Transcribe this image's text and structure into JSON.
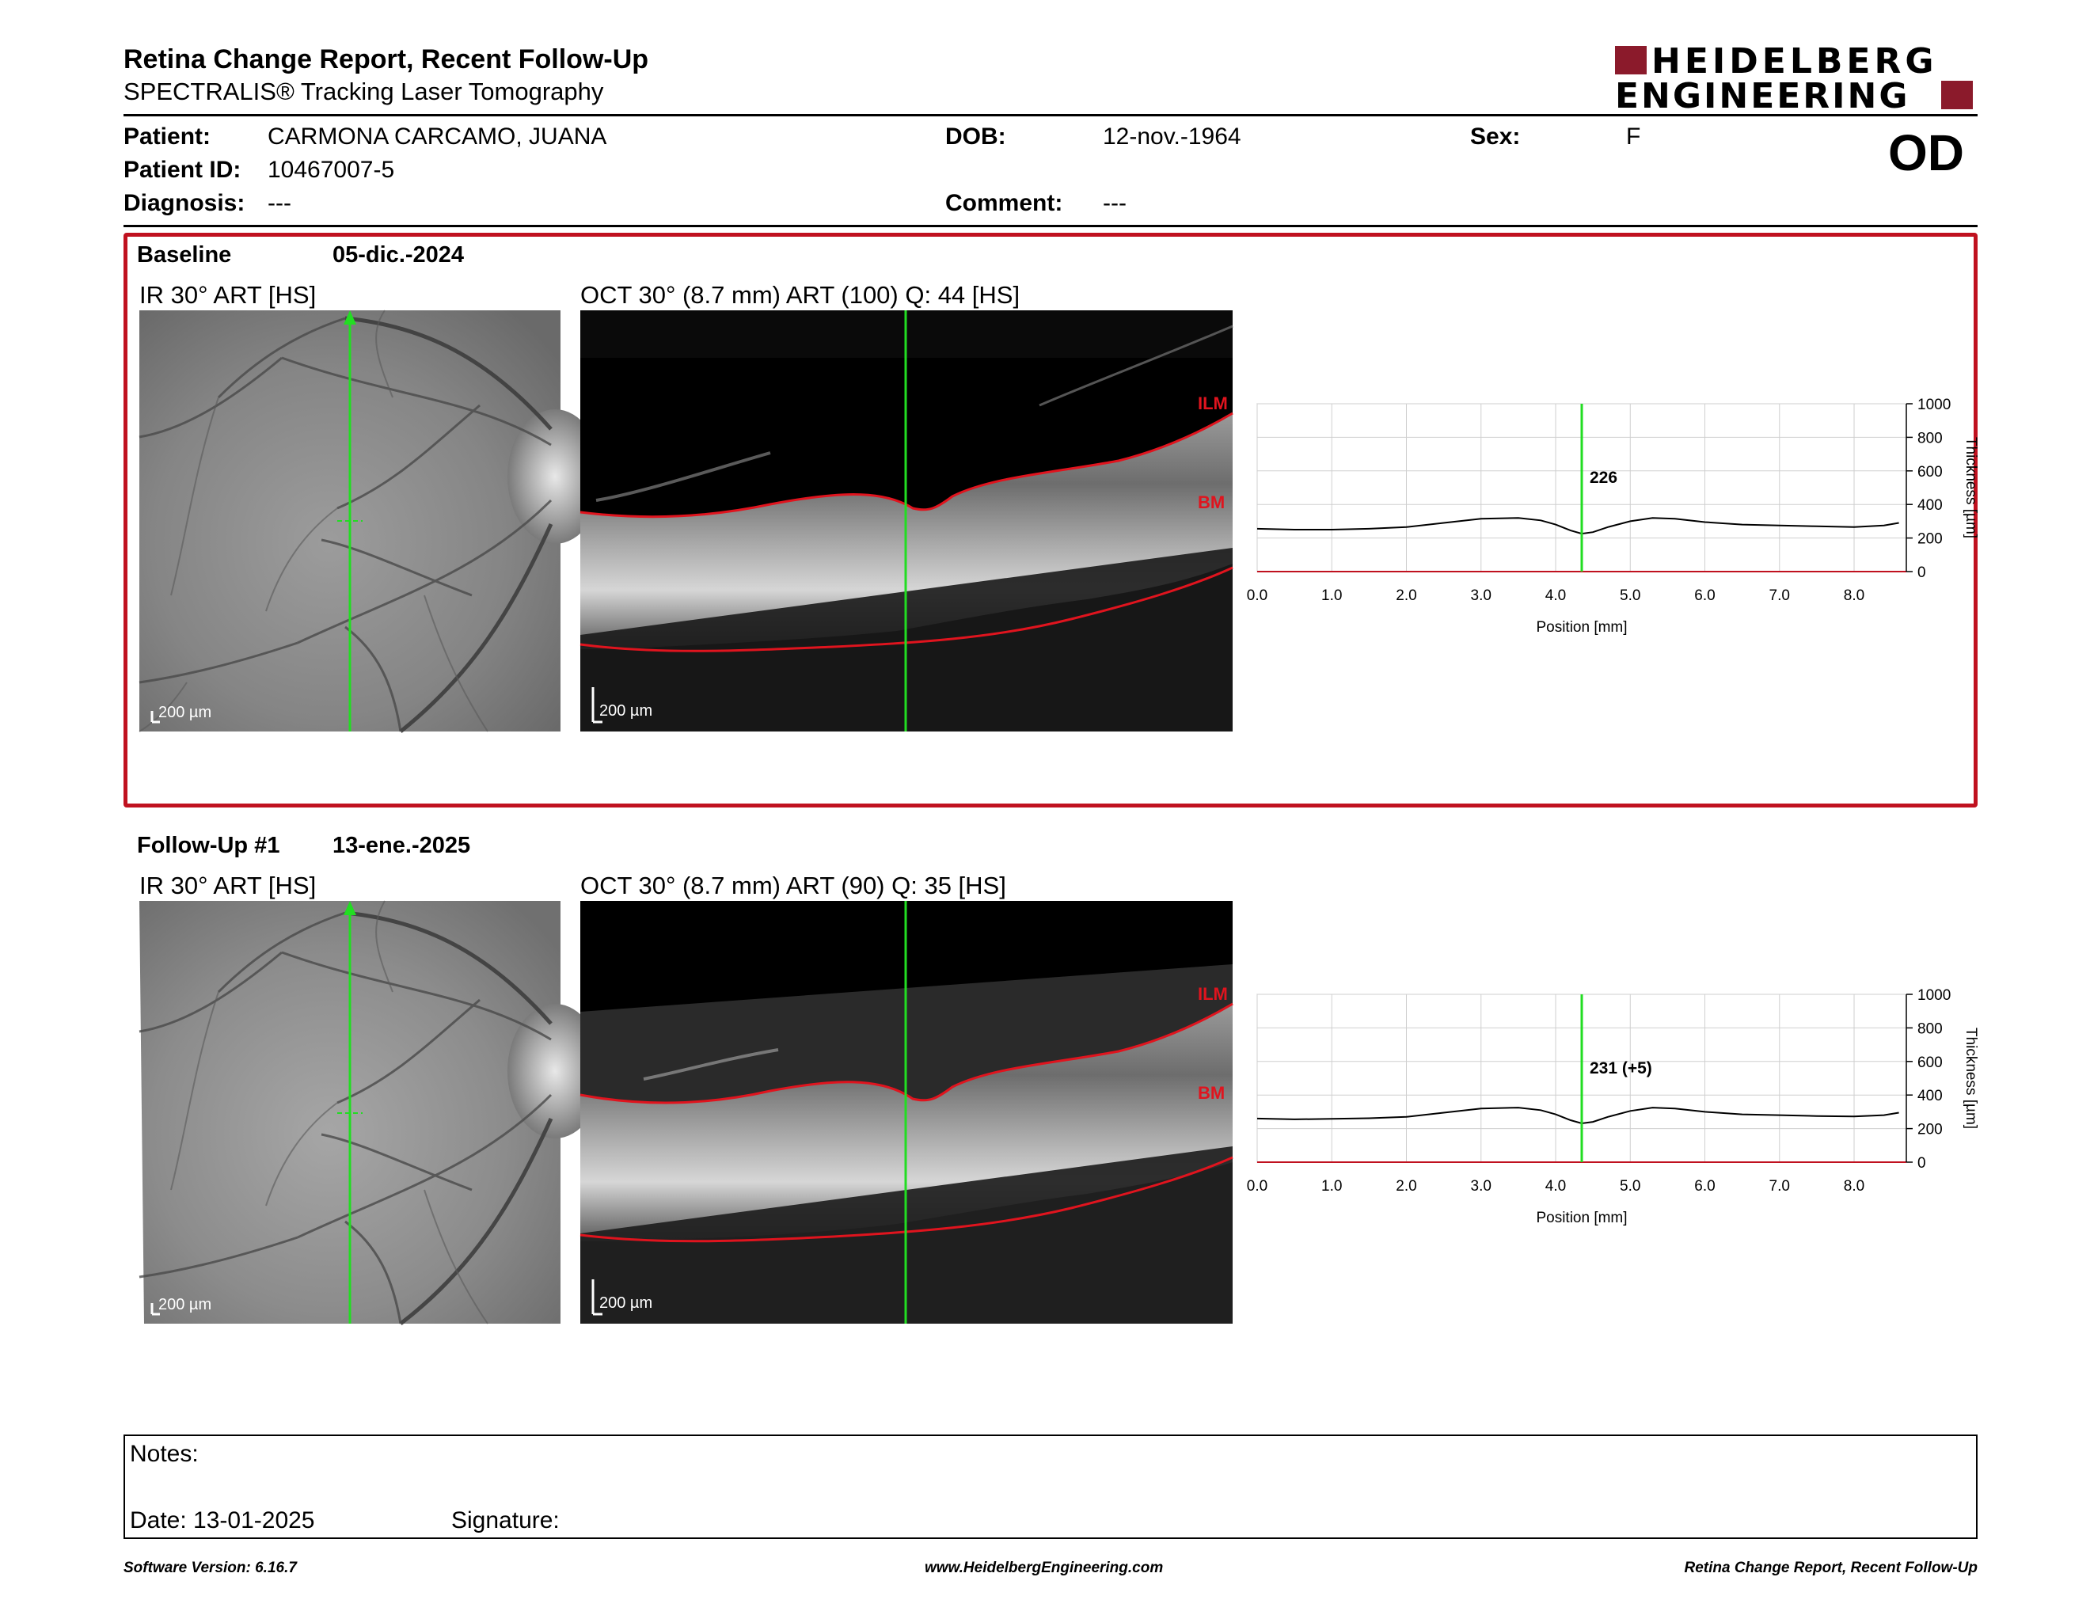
{
  "header": {
    "title": "Retina Change Report, Recent Follow-Up",
    "subtitle": "SPECTRALIS® Tracking Laser Tomography",
    "logo_line1": "HEIDELBERG",
    "logo_line2": "ENGINEERING",
    "eye": "OD"
  },
  "patient": {
    "name_label": "Patient:",
    "name": "CARMONA CARCAMO, JUANA",
    "id_label": "Patient ID:",
    "id": "10467007-5",
    "diagnosis_label": "Diagnosis:",
    "diagnosis": "---",
    "dob_label": "DOB:",
    "dob": "12-nov.-1964",
    "comment_label": "Comment:",
    "comment": "---",
    "sex_label": "Sex:",
    "sex": "F"
  },
  "sections": [
    {
      "label": "Baseline",
      "date": "05-dic.-2024",
      "ir_label": "IR 30° ART [HS]",
      "oct_label": "OCT 30° (8.7 mm) ART (100) Q: 44 [HS]",
      "scale": "200 µm",
      "ilm": "ILM",
      "bm": "BM"
    },
    {
      "label": "Follow-Up #1",
      "date": "13-ene.-2025",
      "ir_label": "IR 30° ART [HS]",
      "oct_label": "OCT 30° (8.7 mm) ART (90) Q: 35 [HS]",
      "scale": "200 µm",
      "ilm": "ILM",
      "bm": "BM"
    }
  ],
  "chart_data": [
    {
      "type": "line",
      "xlabel": "Position [mm]",
      "ylabel": "Thickness [µm]",
      "xlim": [
        0,
        8.7
      ],
      "ylim": [
        0,
        1000
      ],
      "x_ticks": [
        "0.0",
        "1.0",
        "2.0",
        "3.0",
        "4.0",
        "5.0",
        "6.0",
        "7.0",
        "8.0"
      ],
      "y_ticks": [
        "0",
        "200",
        "400",
        "600",
        "800",
        "1000"
      ],
      "grid": true,
      "cursor_x": 4.35,
      "cursor_label": "226",
      "series": [
        {
          "x": [
            0.0,
            0.5,
            1.0,
            1.5,
            2.0,
            2.5,
            3.0,
            3.5,
            3.8,
            4.0,
            4.2,
            4.35,
            4.5,
            4.7,
            5.0,
            5.3,
            5.6,
            6.0,
            6.5,
            7.0,
            7.5,
            8.0,
            8.4,
            8.6
          ],
          "values": [
            255,
            250,
            250,
            255,
            265,
            290,
            315,
            320,
            305,
            280,
            245,
            226,
            235,
            265,
            300,
            320,
            315,
            295,
            280,
            275,
            270,
            265,
            275,
            290
          ]
        }
      ]
    },
    {
      "type": "line",
      "xlabel": "Position [mm]",
      "ylabel": "Thickness [µm]",
      "xlim": [
        0,
        8.7
      ],
      "ylim": [
        0,
        1000
      ],
      "x_ticks": [
        "0.0",
        "1.0",
        "2.0",
        "3.0",
        "4.0",
        "5.0",
        "6.0",
        "7.0",
        "8.0"
      ],
      "y_ticks": [
        "0",
        "200",
        "400",
        "600",
        "800",
        "1000"
      ],
      "grid": true,
      "cursor_x": 4.35,
      "cursor_label": "231 (+5)",
      "series": [
        {
          "x": [
            0.0,
            0.5,
            1.0,
            1.5,
            2.0,
            2.5,
            3.0,
            3.5,
            3.8,
            4.0,
            4.2,
            4.35,
            4.5,
            4.7,
            5.0,
            5.3,
            5.6,
            6.0,
            6.5,
            7.0,
            7.5,
            8.0,
            8.4,
            8.6
          ],
          "values": [
            260,
            255,
            258,
            262,
            270,
            295,
            320,
            325,
            310,
            285,
            250,
            231,
            240,
            270,
            305,
            325,
            320,
            300,
            285,
            280,
            275,
            272,
            280,
            295
          ]
        }
      ]
    }
  ],
  "notes": {
    "notes_label": "Notes:",
    "date_label": "Date: 13-01-2025",
    "signature_label": "Signature:"
  },
  "footer": {
    "version": "Software Version: 6.16.7",
    "url": "www.HeidelbergEngineering.com",
    "report": "Retina Change Report, Recent Follow-Up"
  }
}
